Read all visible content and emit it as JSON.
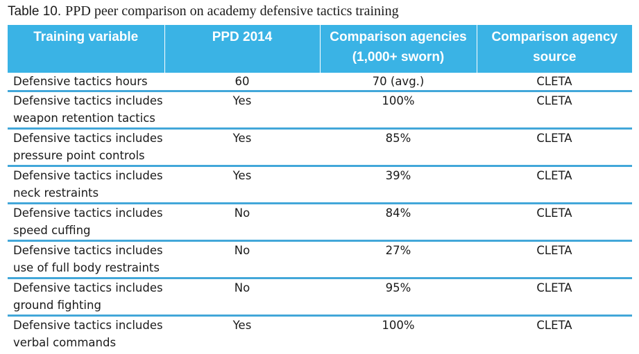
{
  "caption": {
    "lead": "Table 10.",
    "text": "PPD peer comparison on academy defensive tactics training"
  },
  "columns": [
    "Training variable",
    "PPD 2014",
    "Comparison agencies (1,000+ sworn)",
    "Comparison agency source"
  ],
  "rows": [
    {
      "variable": "Defensive tactics hours",
      "ppd": "60",
      "comparison": "70 (avg.)",
      "source": "CLETA"
    },
    {
      "variable": "Defensive tactics includes weapon retention tactics",
      "ppd": "Yes",
      "comparison": "100%",
      "source": "CLETA"
    },
    {
      "variable": "Defensive tactics includes pressure point controls",
      "ppd": "Yes",
      "comparison": "85%",
      "source": "CLETA"
    },
    {
      "variable": "Defensive tactics includes neck restraints",
      "ppd": "Yes",
      "comparison": "39%",
      "source": "CLETA"
    },
    {
      "variable": "Defensive tactics includes speed cuffing",
      "ppd": "No",
      "comparison": "84%",
      "source": "CLETA"
    },
    {
      "variable": "Defensive tactics includes use of full body restraints",
      "ppd": "No",
      "comparison": "27%",
      "source": "CLETA"
    },
    {
      "variable": "Defensive tactics includes ground fighting",
      "ppd": "No",
      "comparison": "95%",
      "source": "CLETA"
    },
    {
      "variable": "Defensive tactics includes verbal commands",
      "ppd": "Yes",
      "comparison": "100%",
      "source": "CLETA"
    }
  ],
  "colors": {
    "header_bg": "#3ab3e5",
    "row_divider": "#42a7d9"
  }
}
